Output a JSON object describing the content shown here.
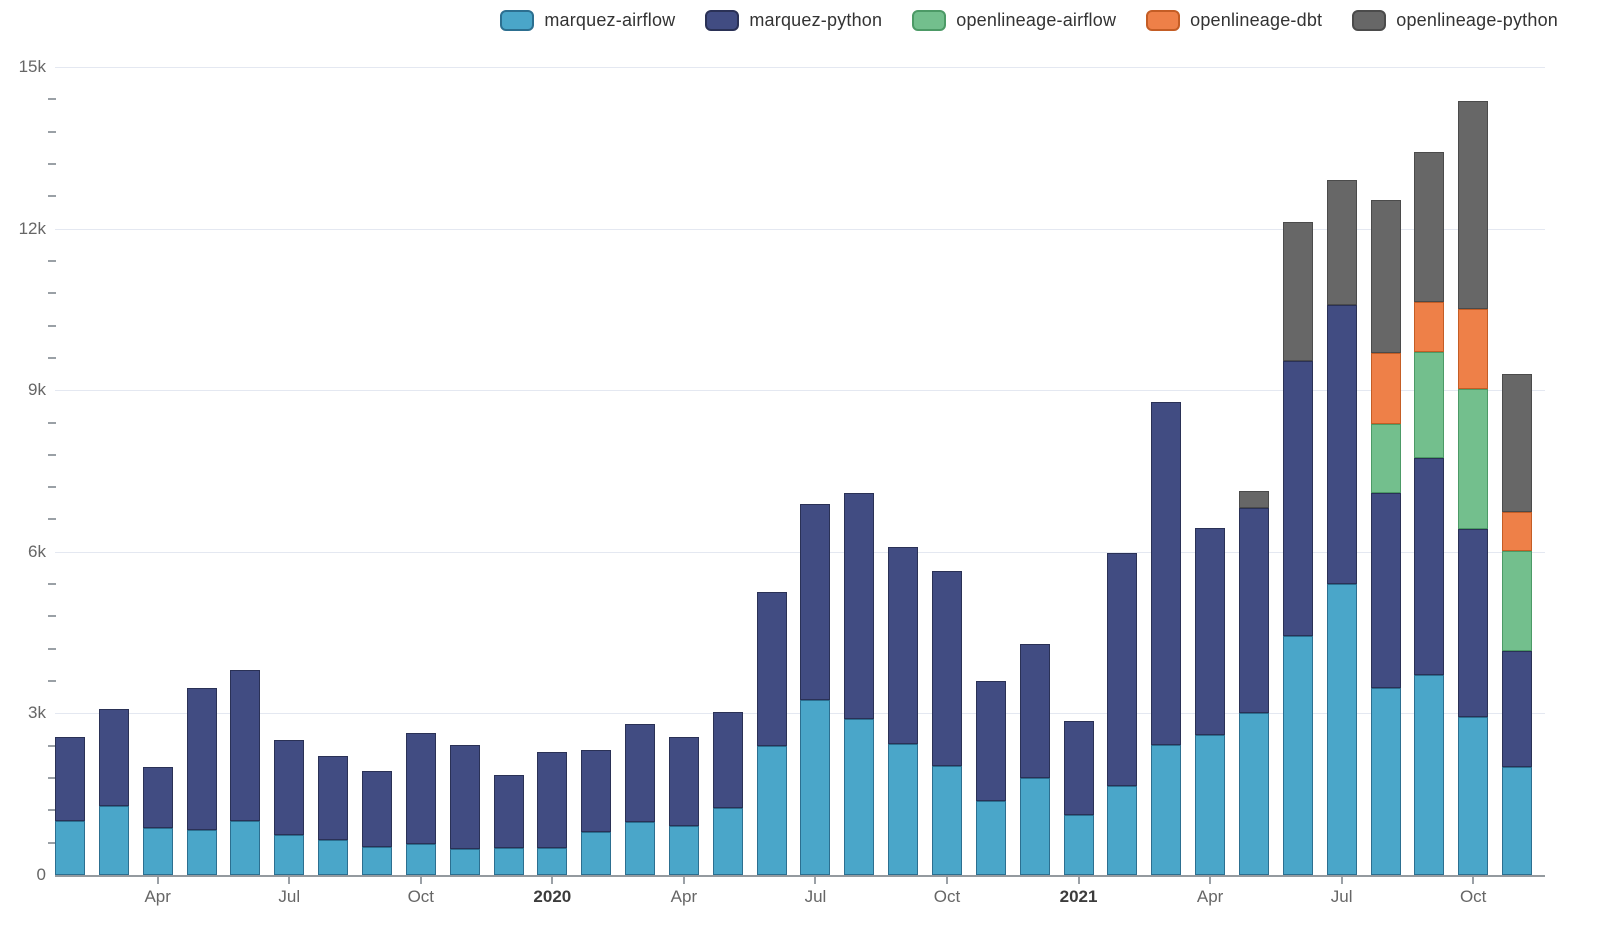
{
  "legend": {
    "items": [
      {
        "label": "marquez-airflow",
        "color": "#4aa6c9",
        "border": "#2c6f90"
      },
      {
        "label": "marquez-python",
        "color": "#414c82",
        "border": "#2a3156"
      },
      {
        "label": "openlineage-airflow",
        "color": "#73bf8d",
        "border": "#4c9a66"
      },
      {
        "label": "openlineage-dbt",
        "color": "#ee8048",
        "border": "#c45d25"
      },
      {
        "label": "openlineage-python",
        "color": "#676767",
        "border": "#4b4b4b"
      }
    ]
  },
  "chart_data": {
    "type": "bar",
    "stacked": true,
    "title": "",
    "xlabel": "",
    "ylabel": "",
    "background": "#ffffff",
    "grid": "horizontal",
    "legend_position": "top-right",
    "categories": [
      "2019-02",
      "2019-03",
      "2019-04",
      "2019-05",
      "2019-06",
      "2019-07",
      "2019-08",
      "2019-09",
      "2019-10",
      "2019-11",
      "2019-12",
      "2020-01",
      "2020-02",
      "2020-03",
      "2020-04",
      "2020-05",
      "2020-06",
      "2020-07",
      "2020-08",
      "2020-09",
      "2020-10",
      "2020-11",
      "2020-12",
      "2021-01",
      "2021-02",
      "2021-03",
      "2021-04",
      "2021-05",
      "2021-06",
      "2021-07",
      "2021-08",
      "2021-09",
      "2021-10",
      "2021-11"
    ],
    "series": [
      {
        "name": "marquez-airflow",
        "color": "#4aa6c9",
        "border": "#2c6f90",
        "values": [
          1010,
          1280,
          880,
          830,
          1000,
          740,
          650,
          520,
          570,
          490,
          510,
          510,
          800,
          990,
          910,
          1250,
          2400,
          3240,
          2900,
          2430,
          2030,
          1370,
          1800,
          1110,
          1650,
          2410,
          2600,
          3000,
          4430,
          5410,
          3470,
          3710,
          2930,
          2010
        ]
      },
      {
        "name": "marquez-python",
        "color": "#414c82",
        "border": "#2a3156",
        "values": [
          1560,
          1800,
          1130,
          2650,
          2800,
          1770,
          1560,
          1410,
          2070,
          1930,
          1340,
          1780,
          1520,
          1810,
          1650,
          1780,
          2860,
          3650,
          4200,
          3650,
          3620,
          2240,
          2480,
          1750,
          4320,
          6370,
          3840,
          3820,
          5120,
          5170,
          3630,
          4040,
          3490,
          2140
        ]
      },
      {
        "name": "openlineage-airflow",
        "color": "#73bf8d",
        "border": "#4c9a66",
        "values": [
          0,
          0,
          0,
          0,
          0,
          0,
          0,
          0,
          0,
          0,
          0,
          0,
          0,
          0,
          0,
          0,
          0,
          0,
          0,
          0,
          0,
          0,
          0,
          0,
          0,
          0,
          0,
          0,
          0,
          0,
          1270,
          1960,
          2600,
          1870
        ]
      },
      {
        "name": "openlineage-dbt",
        "color": "#ee8048",
        "border": "#c45d25",
        "values": [
          0,
          0,
          0,
          0,
          0,
          0,
          0,
          0,
          0,
          0,
          0,
          0,
          0,
          0,
          0,
          0,
          0,
          0,
          0,
          0,
          0,
          0,
          0,
          0,
          0,
          0,
          0,
          0,
          0,
          0,
          1320,
          930,
          1490,
          710
        ]
      },
      {
        "name": "openlineage-python",
        "color": "#676767",
        "border": "#4b4b4b",
        "values": [
          0,
          0,
          0,
          0,
          0,
          0,
          0,
          0,
          0,
          0,
          0,
          0,
          0,
          0,
          0,
          0,
          0,
          0,
          0,
          0,
          0,
          0,
          0,
          0,
          0,
          0,
          0,
          310,
          2580,
          2330,
          2840,
          2780,
          3850,
          2570
        ]
      }
    ],
    "y_axis": {
      "min": 0,
      "max": 15000,
      "major_ticks": [
        {
          "value": 0,
          "label": "0"
        },
        {
          "value": 3000,
          "label": "3k"
        },
        {
          "value": 6000,
          "label": "6k"
        },
        {
          "value": 9000,
          "label": "9k"
        },
        {
          "value": 12000,
          "label": "12k"
        },
        {
          "value": 15000,
          "label": "15k"
        }
      ],
      "minor_interval": 600
    },
    "x_axis": {
      "ticks": [
        {
          "index": 2,
          "label": "Apr",
          "bold": false
        },
        {
          "index": 5,
          "label": "Jul",
          "bold": false
        },
        {
          "index": 8,
          "label": "Oct",
          "bold": false
        },
        {
          "index": 11,
          "label": "2020",
          "bold": true
        },
        {
          "index": 14,
          "label": "Apr",
          "bold": false
        },
        {
          "index": 17,
          "label": "Jul",
          "bold": false
        },
        {
          "index": 20,
          "label": "Oct",
          "bold": false
        },
        {
          "index": 23,
          "label": "2021",
          "bold": true
        },
        {
          "index": 26,
          "label": "Apr",
          "bold": false
        },
        {
          "index": 29,
          "label": "Jul",
          "bold": false
        },
        {
          "index": 32,
          "label": "Oct",
          "bold": false
        }
      ]
    },
    "colors": {
      "gridline": "#e4e8f1",
      "axis_line": "#949a9f",
      "tick": "#9aa0a6",
      "axis_label": "#666666",
      "axis_label_bold": "#3c3c3c",
      "legend_text": "#333333"
    }
  }
}
